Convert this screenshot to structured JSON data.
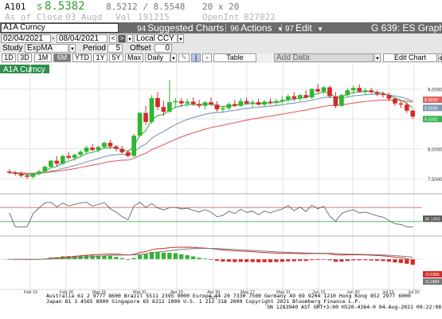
{
  "quote": {
    "ticker": "A101",
    "price_prefix": "s",
    "price": "8.5382",
    "bid_ask": "8.5212 / 8.5548",
    "size": "20 x 20",
    "close_label": "As of Close",
    "close_date": "03 Augd",
    "vol_label": "Vol",
    "vol_value": "191215",
    "openint_label": "OpenInt",
    "openint_value": "827022"
  },
  "toolbar": {
    "security": "A1A Curncy",
    "suggested_num": "94",
    "suggested_label": "Suggested Charts",
    "actions_num": "96",
    "actions_label": "Actions",
    "edit_num": "97",
    "edit_label": "Edit",
    "graph_label": "G 639: ES Graph"
  },
  "range": {
    "start": "02/04/2021",
    "end": "08/04/2021",
    "currency": "Local CCY"
  },
  "study": {
    "label": "Study",
    "value": "ExpMA",
    "period_label": "Period",
    "period_value": "5",
    "offset_label": "Offset",
    "offset_value": "0"
  },
  "periods": [
    "1D",
    "3D",
    "1M",
    "6M",
    "YTD",
    "1Y",
    "5Y",
    "Max"
  ],
  "selected_period": "6M",
  "frequency": "Daily",
  "table_label": "Table",
  "add_data_placeholder": "Add Data",
  "edit_chart_label": "Edit Chart",
  "colors": {
    "up": "#2fb62f",
    "down": "#d42a2a",
    "ema_fast": "#37b24d",
    "ema_mid": "#7f97b0",
    "ema_slow": "#e36060",
    "toolbar_dark": "#6b6b6b",
    "ticker_green": "#2e9c2e",
    "asof_gray": "#b3b3b3"
  },
  "chart_data": {
    "type": "candlestick",
    "x_tick_labels": [
      "Feb 15",
      "Feb 26",
      "Mar 15",
      "Mar 31",
      "Apr 15",
      "Apr 30",
      "May 17",
      "May 31",
      "Jun 15",
      "Jun 30",
      "Jul 15",
      "Jul 30"
    ],
    "year_label": "2021",
    "y_tick_labels": [
      "9.0000",
      "8.5000",
      "8.0000",
      "7.5000"
    ],
    "ylim": [
      7.3,
      9.25
    ],
    "price_tags": [
      "8.8094",
      "8.6986",
      "8.5382"
    ],
    "candles": [
      [
        7.62,
        7.66,
        7.58,
        7.6
      ],
      [
        7.6,
        7.63,
        7.55,
        7.58
      ],
      [
        7.58,
        7.62,
        7.52,
        7.55
      ],
      [
        7.55,
        7.58,
        7.5,
        7.53
      ],
      [
        7.53,
        7.6,
        7.5,
        7.58
      ],
      [
        7.58,
        7.65,
        7.55,
        7.62
      ],
      [
        7.62,
        7.72,
        7.6,
        7.7
      ],
      [
        7.7,
        7.82,
        7.68,
        7.8
      ],
      [
        7.8,
        7.88,
        7.7,
        7.75
      ],
      [
        7.75,
        7.9,
        7.73,
        7.88
      ],
      [
        7.88,
        7.95,
        7.82,
        7.85
      ],
      [
        7.85,
        7.92,
        7.8,
        7.9
      ],
      [
        7.9,
        7.98,
        7.86,
        7.95
      ],
      [
        7.95,
        8.05,
        7.92,
        8.02
      ],
      [
        8.02,
        8.08,
        7.96,
        7.98
      ],
      [
        7.98,
        8.05,
        7.94,
        8.03
      ],
      [
        8.03,
        8.12,
        8.0,
        8.1
      ],
      [
        8.1,
        8.15,
        8.0,
        8.04
      ],
      [
        8.04,
        8.06,
        7.96,
        8.0
      ],
      [
        8.0,
        8.05,
        7.92,
        7.94
      ],
      [
        7.94,
        7.98,
        7.86,
        7.88
      ],
      [
        7.88,
        8.25,
        7.86,
        8.22
      ],
      [
        8.22,
        8.62,
        8.2,
        8.6
      ],
      [
        8.6,
        8.72,
        8.4,
        8.45
      ],
      [
        8.45,
        8.9,
        8.42,
        8.85
      ],
      [
        8.85,
        8.95,
        8.65,
        8.7
      ],
      [
        8.7,
        8.8,
        8.55,
        8.62
      ],
      [
        8.62,
        9.15,
        8.6,
        8.78
      ],
      [
        8.78,
        8.85,
        8.68,
        8.8
      ],
      [
        8.8,
        8.85,
        8.7,
        8.76
      ],
      [
        8.76,
        8.84,
        8.7,
        8.79
      ],
      [
        8.79,
        8.86,
        8.72,
        8.75
      ],
      [
        8.75,
        8.82,
        8.68,
        8.72
      ],
      [
        8.72,
        8.8,
        8.66,
        8.78
      ],
      [
        8.78,
        8.86,
        8.72,
        8.74
      ],
      [
        8.74,
        8.8,
        8.62,
        8.66
      ],
      [
        8.66,
        8.72,
        8.6,
        8.68
      ],
      [
        8.68,
        8.78,
        8.65,
        8.75
      ],
      [
        8.75,
        8.82,
        8.7,
        8.72
      ],
      [
        8.72,
        8.85,
        8.7,
        8.8
      ],
      [
        8.8,
        8.86,
        8.74,
        8.76
      ],
      [
        8.76,
        8.82,
        8.7,
        8.78
      ],
      [
        8.78,
        8.84,
        8.72,
        8.74
      ],
      [
        8.74,
        8.82,
        8.7,
        8.79
      ],
      [
        8.79,
        8.85,
        8.74,
        8.77
      ],
      [
        8.77,
        8.84,
        8.72,
        8.8
      ],
      [
        8.8,
        8.88,
        8.76,
        8.82
      ],
      [
        8.82,
        8.92,
        8.78,
        8.88
      ],
      [
        8.88,
        8.95,
        8.8,
        8.84
      ],
      [
        8.84,
        8.92,
        8.8,
        8.9
      ],
      [
        8.9,
        8.98,
        8.84,
        8.86
      ],
      [
        8.86,
        9.02,
        8.84,
        9.0
      ],
      [
        9.0,
        9.08,
        8.94,
        8.96
      ],
      [
        8.96,
        9.05,
        8.92,
        9.03
      ],
      [
        9.03,
        9.06,
        8.85,
        8.88
      ],
      [
        8.88,
        8.95,
        8.68,
        8.72
      ],
      [
        8.72,
        8.92,
        8.7,
        8.9
      ],
      [
        8.9,
        9.02,
        8.86,
        8.98
      ],
      [
        8.98,
        9.06,
        8.92,
        9.02
      ],
      [
        9.02,
        9.08,
        8.94,
        8.96
      ],
      [
        8.96,
        9.02,
        8.9,
        8.98
      ],
      [
        8.98,
        9.02,
        8.92,
        8.95
      ],
      [
        8.95,
        8.98,
        8.88,
        8.92
      ],
      [
        8.92,
        8.96,
        8.86,
        8.9
      ],
      [
        8.9,
        8.94,
        8.8,
        8.84
      ],
      [
        8.84,
        8.86,
        8.72,
        8.76
      ],
      [
        8.76,
        8.8,
        8.68,
        8.74
      ],
      [
        8.74,
        8.78,
        8.6,
        8.64
      ],
      [
        8.64,
        8.66,
        8.5,
        8.54
      ]
    ],
    "rsi_ref_levels": [
      70,
      30
    ],
    "rsi_tag": "38.1993",
    "macd_tags": [
      "-0.0386",
      "-0.1994"
    ]
  }
}
